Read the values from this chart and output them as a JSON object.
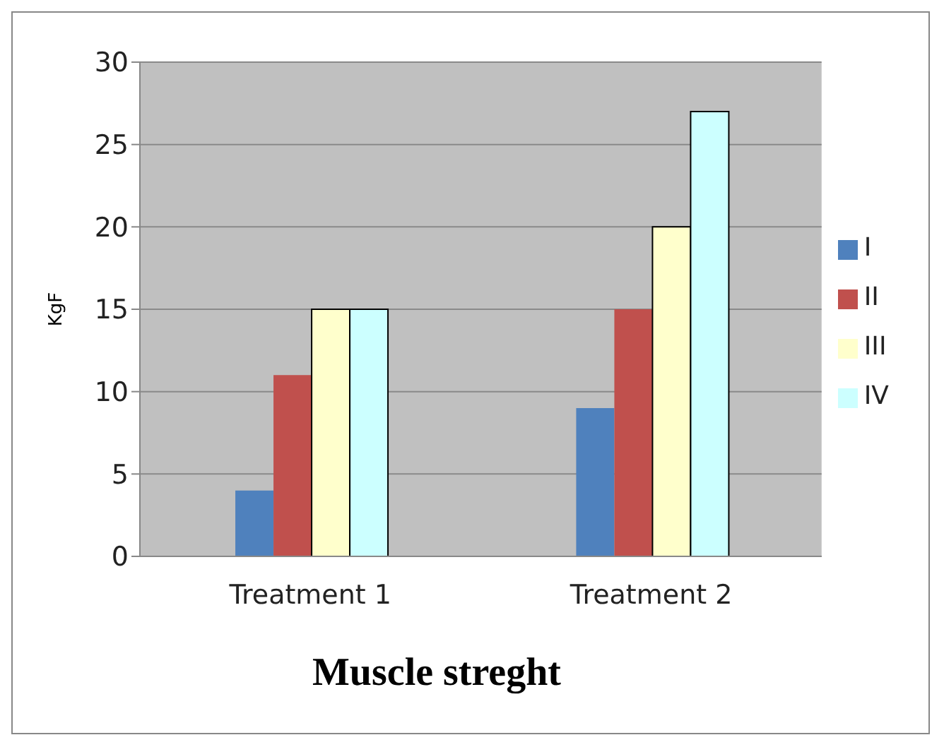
{
  "chart_data": {
    "type": "bar",
    "title": "Muscle streght",
    "ylabel": "KgF",
    "categories": [
      "Treatment 1",
      "Treatment 2"
    ],
    "series": [
      {
        "name": "I",
        "color": "#4f81bd",
        "values": [
          4,
          9
        ]
      },
      {
        "name": "II",
        "color": "#c0504d",
        "values": [
          11,
          15
        ]
      },
      {
        "name": "III",
        "color": "#ffffcc",
        "values": [
          15,
          20
        ]
      },
      {
        "name": "IV",
        "color": "#ccffff",
        "values": [
          15,
          27
        ]
      }
    ],
    "ylim": [
      0,
      30
    ],
    "yticks": [
      0,
      5,
      10,
      15,
      20,
      25,
      30
    ],
    "grid": "y",
    "legend": "right"
  }
}
